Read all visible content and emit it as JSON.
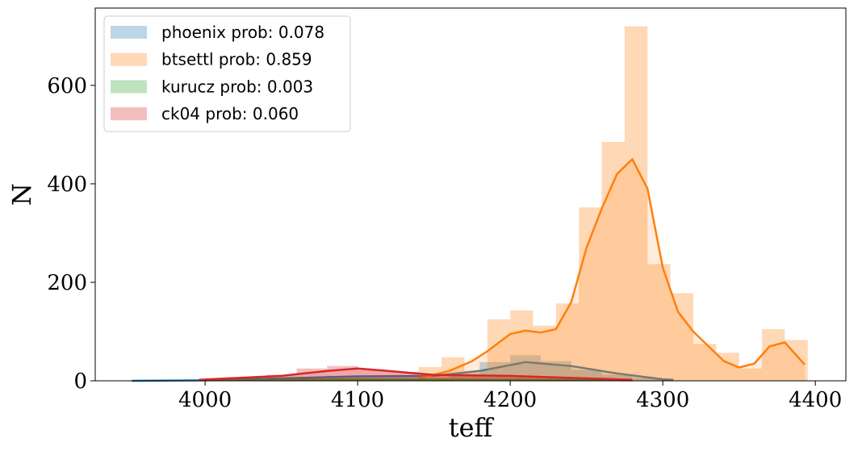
{
  "chart_data": {
    "type": "histogram",
    "x_label": "teff",
    "y_label": "N",
    "xlim": [
      3928,
      4420
    ],
    "ylim": [
      0,
      757
    ],
    "xticks": [
      4000,
      4100,
      4200,
      4300,
      4400
    ],
    "yticks": [
      0,
      200,
      400,
      600
    ],
    "legend": "upper left",
    "hist_opacity": 0.3,
    "series": [
      {
        "name": "phoenix prob: 0.078",
        "color": "#1f77b4",
        "bins": [
          4060,
          4080,
          4100,
          4120,
          4140,
          4160,
          4180,
          4200,
          4220,
          4240,
          4260,
          4280,
          4300
        ],
        "counts": [
          8,
          10,
          10,
          8,
          6,
          14,
          38,
          52,
          40,
          22,
          12,
          6
        ],
        "kde": {
          "x": [
            3952,
            4000,
            4050,
            4100,
            4150,
            4180,
            4210,
            4240,
            4270,
            4300,
            4307
          ],
          "values": [
            0,
            1,
            5,
            9,
            10,
            20,
            38,
            30,
            15,
            3,
            2
          ]
        }
      },
      {
        "name": "btsettl prob: 0.859",
        "color": "#ff7f0e",
        "bins": [
          4140,
          4155,
          4170,
          4185,
          4200,
          4215,
          4230,
          4245,
          4260,
          4275,
          4290,
          4305,
          4320,
          4335,
          4350,
          4365,
          4380,
          4395
        ],
        "counts": [
          28,
          48,
          20,
          125,
          143,
          112,
          157,
          352,
          485,
          720,
          237,
          178,
          75,
          57,
          25,
          105,
          83
        ],
        "kde": {
          "x": [
            4140,
            4160,
            4175,
            4185,
            4200,
            4210,
            4220,
            4230,
            4240,
            4250,
            4260,
            4270,
            4280,
            4290,
            4300,
            4310,
            4320,
            4330,
            4340,
            4350,
            4360,
            4370,
            4380,
            4393
          ],
          "values": [
            5,
            20,
            40,
            60,
            95,
            102,
            98,
            105,
            160,
            270,
            350,
            420,
            450,
            390,
            230,
            140,
            100,
            70,
            40,
            27,
            35,
            70,
            78,
            33
          ]
        }
      },
      {
        "name": "kurucz prob: 0.003",
        "color": "#2ca02c",
        "bins": [
          4000,
          4040,
          4080,
          4120,
          4160,
          4200
        ],
        "counts": [
          1,
          2,
          3,
          3,
          2
        ],
        "kde": {
          "x": [
            4000,
            4100,
            4200,
            4280
          ],
          "values": [
            1,
            3,
            2,
            1
          ]
        }
      },
      {
        "name": "ck04 prob: 0.060",
        "color": "#d62728",
        "bins": [
          4000,
          4020,
          4040,
          4060,
          4080,
          4100,
          4120,
          4140,
          4160,
          4180,
          4200,
          4220,
          4240,
          4260,
          4280
        ],
        "counts": [
          3,
          5,
          12,
          25,
          30,
          22,
          18,
          12,
          10,
          10,
          8,
          8,
          6,
          4
        ],
        "kde": {
          "x": [
            3996,
            4050,
            4080,
            4100,
            4120,
            4150,
            4200,
            4250,
            4280
          ],
          "values": [
            2,
            10,
            20,
            25,
            20,
            12,
            10,
            5,
            2
          ]
        }
      }
    ]
  }
}
